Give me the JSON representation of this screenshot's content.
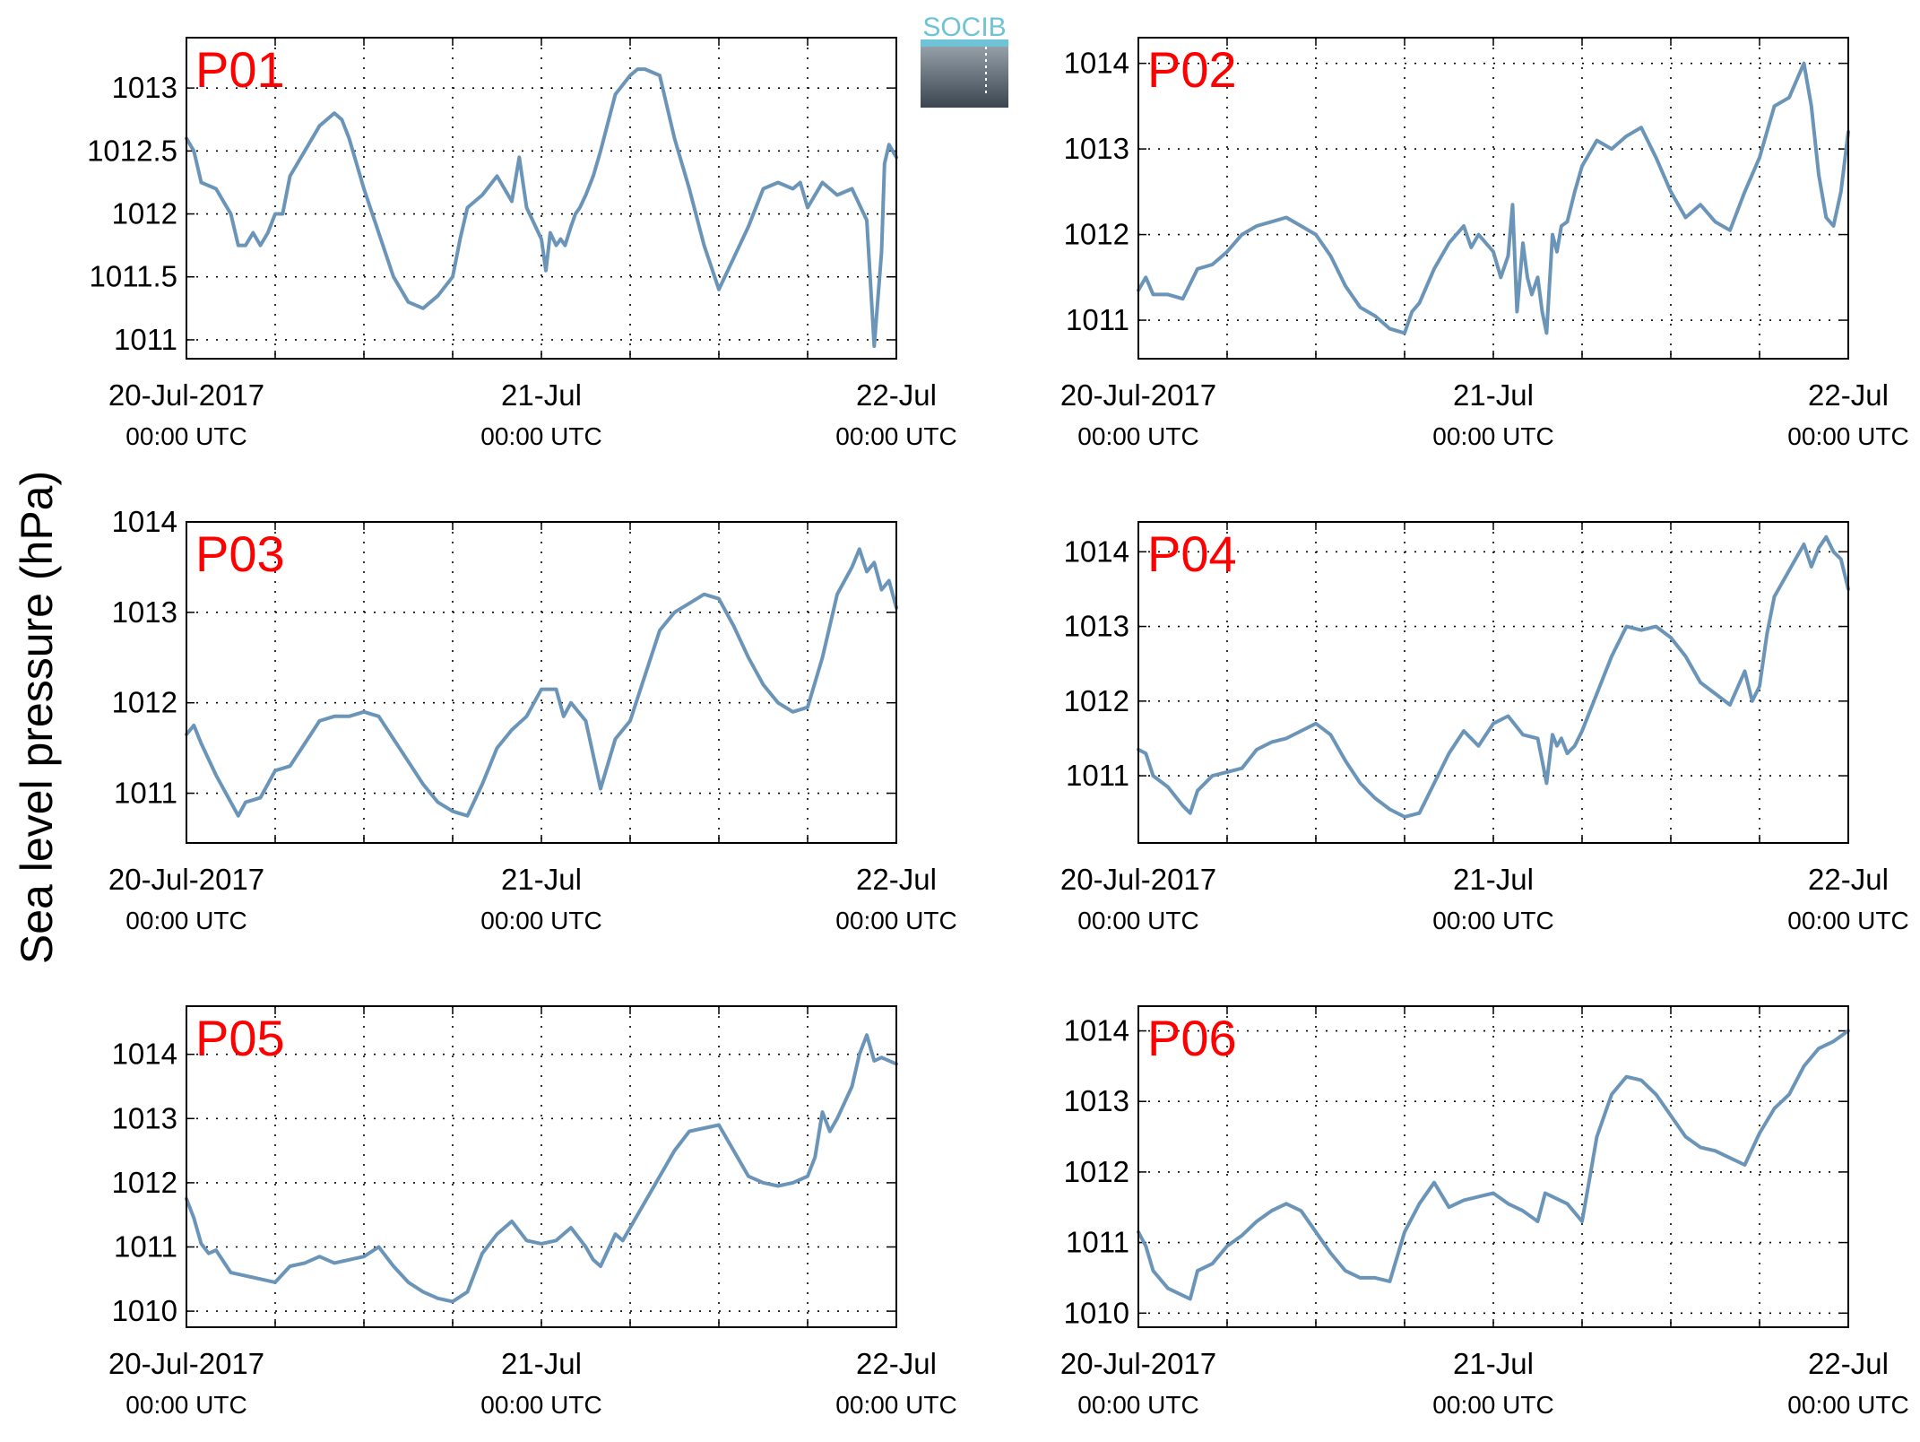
{
  "ylabel": "Sea level pressure (hPa)",
  "logo": {
    "text": "SOCIB"
  },
  "chart_data": [
    {
      "type": "line",
      "label": "P01",
      "xlim": [
        0,
        48
      ],
      "ylim": [
        1010.85,
        1013.4
      ],
      "yticks": [
        1011,
        1011.5,
        1012,
        1012.5,
        1013
      ],
      "ytick_labels": [
        "1011",
        "1011.5",
        "1012",
        "1012.5",
        "1013"
      ],
      "xticks": [
        0,
        24,
        48
      ],
      "xtick_labels": [
        [
          "20-Jul-2017",
          "00:00 UTC"
        ],
        [
          "21-Jul",
          "00:00 UTC"
        ],
        [
          "22-Jul",
          "00:00 UTC"
        ]
      ],
      "series": [
        {
          "color": "#6b95b8",
          "x": [
            0,
            0.5,
            1,
            2,
            3,
            3.5,
            4,
            4.5,
            5,
            5.5,
            6,
            6.5,
            7,
            8,
            9,
            10,
            10.5,
            11,
            12,
            13,
            14,
            15,
            16,
            17,
            18,
            18.5,
            19,
            20,
            21,
            22,
            22.5,
            23,
            24,
            24.3,
            24.6,
            25,
            25.3,
            25.6,
            26,
            26.3,
            26.6,
            27,
            27.5,
            28,
            29,
            30,
            30.5,
            31,
            32,
            33,
            34,
            35,
            36,
            37,
            38,
            39,
            40,
            41,
            41.5,
            42,
            43,
            44,
            45,
            46,
            46.5,
            47,
            47.2,
            47.5,
            48
          ],
          "y": [
            1012.6,
            1012.5,
            1012.25,
            1012.2,
            1012,
            1011.75,
            1011.75,
            1011.85,
            1011.75,
            1011.85,
            1012,
            1012,
            1012.3,
            1012.5,
            1012.7,
            1012.8,
            1012.75,
            1012.6,
            1012.2,
            1011.85,
            1011.5,
            1011.3,
            1011.25,
            1011.35,
            1011.5,
            1011.8,
            1012.05,
            1012.15,
            1012.3,
            1012.1,
            1012.45,
            1012.05,
            1011.8,
            1011.55,
            1011.85,
            1011.75,
            1011.8,
            1011.75,
            1011.9,
            1012,
            1012.05,
            1012.15,
            1012.3,
            1012.5,
            1012.95,
            1013.1,
            1013.15,
            1013.15,
            1013.1,
            1012.6,
            1012.2,
            1011.75,
            1011.4,
            1011.65,
            1011.9,
            1012.2,
            1012.25,
            1012.2,
            1012.25,
            1012.05,
            1012.25,
            1012.15,
            1012.2,
            1011.95,
            1010.95,
            1011.7,
            1012.4,
            1012.55,
            1012.45
          ]
        }
      ]
    },
    {
      "type": "line",
      "label": "P02",
      "xlim": [
        0,
        48
      ],
      "ylim": [
        1010.55,
        1014.3
      ],
      "yticks": [
        1011,
        1012,
        1013,
        1014
      ],
      "ytick_labels": [
        "1011",
        "1012",
        "1013",
        "1014"
      ],
      "xticks": [
        0,
        24,
        48
      ],
      "xtick_labels": [
        [
          "20-Jul-2017",
          "00:00 UTC"
        ],
        [
          "21-Jul",
          "00:00 UTC"
        ],
        [
          "22-Jul",
          "00:00 UTC"
        ]
      ],
      "series": [
        {
          "color": "#6b95b8",
          "x": [
            0,
            0.5,
            1,
            2,
            3,
            4,
            5,
            6,
            7,
            8,
            9,
            10,
            11,
            12,
            13,
            14,
            15,
            16,
            17,
            18,
            18.5,
            19,
            20,
            21,
            22,
            22.5,
            23,
            24,
            24.5,
            25,
            25.3,
            25.6,
            26,
            26.3,
            26.6,
            27,
            27.3,
            27.6,
            28,
            28.3,
            28.6,
            29,
            29.5,
            30,
            31,
            32,
            33,
            34,
            35,
            36,
            37,
            38,
            39,
            40,
            41,
            42,
            43,
            44,
            45,
            45.5,
            46,
            46.5,
            47,
            47.5,
            48
          ],
          "y": [
            1011.35,
            1011.5,
            1011.3,
            1011.3,
            1011.25,
            1011.6,
            1011.65,
            1011.8,
            1012,
            1012.1,
            1012.15,
            1012.2,
            1012.1,
            1012,
            1011.75,
            1011.4,
            1011.15,
            1011.05,
            1010.9,
            1010.85,
            1011.1,
            1011.2,
            1011.6,
            1011.9,
            1012.1,
            1011.85,
            1012,
            1011.8,
            1011.5,
            1011.75,
            1012.35,
            1011.1,
            1011.9,
            1011.5,
            1011.3,
            1011.5,
            1011.1,
            1010.85,
            1012,
            1011.8,
            1012.1,
            1012.15,
            1012.5,
            1012.8,
            1013.1,
            1013.0,
            1013.15,
            1013.25,
            1012.9,
            1012.5,
            1012.2,
            1012.35,
            1012.15,
            1012.05,
            1012.5,
            1012.9,
            1013.5,
            1013.6,
            1014.0,
            1013.5,
            1012.7,
            1012.2,
            1012.1,
            1012.5,
            1013.2
          ]
        }
      ]
    },
    {
      "type": "line",
      "label": "P03",
      "xlim": [
        0,
        48
      ],
      "ylim": [
        1010.45,
        1014.0
      ],
      "yticks": [
        1011,
        1012,
        1013,
        1014
      ],
      "ytick_labels": [
        "1011",
        "1012",
        "1013",
        "1014"
      ],
      "xticks": [
        0,
        24,
        48
      ],
      "xtick_labels": [
        [
          "20-Jul-2017",
          "00:00 UTC"
        ],
        [
          "21-Jul",
          "00:00 UTC"
        ],
        [
          "22-Jul",
          "00:00 UTC"
        ]
      ],
      "series": [
        {
          "color": "#6b95b8",
          "x": [
            0,
            0.5,
            1,
            2,
            3,
            3.5,
            4,
            5,
            6,
            7,
            8,
            9,
            10,
            11,
            12,
            13,
            14,
            15,
            16,
            17,
            18,
            19,
            20,
            21,
            22,
            23,
            24,
            25,
            25.5,
            26,
            27,
            28,
            29,
            30,
            31,
            32,
            33,
            34,
            35,
            36,
            37,
            38,
            39,
            40,
            41,
            42,
            43,
            44,
            45,
            45.5,
            46,
            46.5,
            47,
            47.5,
            48
          ],
          "y": [
            1011.65,
            1011.75,
            1011.55,
            1011.2,
            1010.9,
            1010.75,
            1010.9,
            1010.95,
            1011.25,
            1011.3,
            1011.55,
            1011.8,
            1011.85,
            1011.85,
            1011.9,
            1011.85,
            1011.6,
            1011.35,
            1011.1,
            1010.9,
            1010.8,
            1010.75,
            1011.1,
            1011.5,
            1011.7,
            1011.85,
            1012.15,
            1012.15,
            1011.85,
            1012.0,
            1011.8,
            1011.05,
            1011.6,
            1011.8,
            1012.3,
            1012.8,
            1013.0,
            1013.1,
            1013.2,
            1013.15,
            1012.85,
            1012.5,
            1012.2,
            1012.0,
            1011.9,
            1011.95,
            1012.5,
            1013.2,
            1013.5,
            1013.7,
            1013.45,
            1013.55,
            1013.25,
            1013.35,
            1013.05
          ]
        }
      ]
    },
    {
      "type": "line",
      "label": "P04",
      "xlim": [
        0,
        48
      ],
      "ylim": [
        1010.1,
        1014.4
      ],
      "yticks": [
        1011,
        1012,
        1013,
        1014
      ],
      "ytick_labels": [
        "1011",
        "1012",
        "1013",
        "1014"
      ],
      "xticks": [
        0,
        24,
        48
      ],
      "xtick_labels": [
        [
          "20-Jul-2017",
          "00:00 UTC"
        ],
        [
          "21-Jul",
          "00:00 UTC"
        ],
        [
          "22-Jul",
          "00:00 UTC"
        ]
      ],
      "series": [
        {
          "color": "#6b95b8",
          "x": [
            0,
            0.5,
            1,
            2,
            3,
            3.5,
            4,
            5,
            6,
            7,
            8,
            9,
            10,
            11,
            12,
            13,
            14,
            15,
            16,
            17,
            18,
            19,
            20,
            21,
            22,
            23,
            24,
            25,
            26,
            27,
            27.3,
            27.6,
            28,
            28.3,
            28.6,
            29,
            29.5,
            30,
            31,
            32,
            33,
            34,
            35,
            36,
            37,
            38,
            39,
            40,
            41,
            41.5,
            42,
            42.5,
            43,
            44,
            45,
            45.5,
            46,
            46.5,
            47,
            47.5,
            48
          ],
          "y": [
            1011.35,
            1011.3,
            1011.0,
            1010.85,
            1010.6,
            1010.5,
            1010.8,
            1011.0,
            1011.05,
            1011.1,
            1011.35,
            1011.45,
            1011.5,
            1011.6,
            1011.7,
            1011.55,
            1011.2,
            1010.9,
            1010.7,
            1010.55,
            1010.45,
            1010.5,
            1010.9,
            1011.3,
            1011.6,
            1011.4,
            1011.7,
            1011.8,
            1011.55,
            1011.5,
            1011.2,
            1010.9,
            1011.55,
            1011.4,
            1011.5,
            1011.3,
            1011.4,
            1011.6,
            1012.1,
            1012.6,
            1013.0,
            1012.95,
            1013.0,
            1012.85,
            1012.6,
            1012.25,
            1012.1,
            1011.95,
            1012.4,
            1012.0,
            1012.2,
            1012.9,
            1013.4,
            1013.75,
            1014.1,
            1013.8,
            1014.05,
            1014.2,
            1014.0,
            1013.9,
            1013.5
          ]
        }
      ]
    },
    {
      "type": "line",
      "label": "P05",
      "xlim": [
        0,
        48
      ],
      "ylim": [
        1009.75,
        1014.75
      ],
      "yticks": [
        1010,
        1011,
        1012,
        1013,
        1014
      ],
      "ytick_labels": [
        "1010",
        "1011",
        "1012",
        "1013",
        "1014"
      ],
      "xticks": [
        0,
        24,
        48
      ],
      "xtick_labels": [
        [
          "20-Jul-2017",
          "00:00 UTC"
        ],
        [
          "21-Jul",
          "00:00 UTC"
        ],
        [
          "22-Jul",
          "00:00 UTC"
        ]
      ],
      "series": [
        {
          "color": "#6b95b8",
          "x": [
            0,
            0.5,
            1,
            1.5,
            2,
            3,
            4,
            5,
            6,
            7,
            8,
            9,
            10,
            11,
            12,
            13,
            14,
            15,
            16,
            17,
            18,
            19,
            20,
            21,
            22,
            23,
            24,
            25,
            26,
            27,
            27.5,
            28,
            29,
            29.5,
            30,
            31,
            32,
            33,
            34,
            35,
            36,
            37,
            38,
            39,
            40,
            41,
            42,
            42.5,
            43,
            43.5,
            44,
            45,
            45.5,
            46,
            46.5,
            47,
            48
          ],
          "y": [
            1011.75,
            1011.45,
            1011.05,
            1010.9,
            1010.95,
            1010.6,
            1010.55,
            1010.5,
            1010.45,
            1010.7,
            1010.75,
            1010.85,
            1010.75,
            1010.8,
            1010.85,
            1011.0,
            1010.7,
            1010.45,
            1010.3,
            1010.2,
            1010.15,
            1010.3,
            1010.9,
            1011.2,
            1011.4,
            1011.1,
            1011.05,
            1011.1,
            1011.3,
            1011.0,
            1010.8,
            1010.7,
            1011.2,
            1011.1,
            1011.3,
            1011.7,
            1012.1,
            1012.5,
            1012.8,
            1012.85,
            1012.9,
            1012.5,
            1012.1,
            1012.0,
            1011.95,
            1012.0,
            1012.1,
            1012.4,
            1013.1,
            1012.8,
            1013.0,
            1013.5,
            1014.0,
            1014.3,
            1013.9,
            1013.95,
            1013.85
          ]
        }
      ]
    },
    {
      "type": "line",
      "label": "P06",
      "xlim": [
        0,
        48
      ],
      "ylim": [
        1009.8,
        1014.35
      ],
      "yticks": [
        1010,
        1011,
        1012,
        1013,
        1014
      ],
      "ytick_labels": [
        "1010",
        "1011",
        "1012",
        "1013",
        "1014"
      ],
      "xticks": [
        0,
        24,
        48
      ],
      "xtick_labels": [
        [
          "20-Jul-2017",
          "00:00 UTC"
        ],
        [
          "21-Jul",
          "00:00 UTC"
        ],
        [
          "22-Jul",
          "00:00 UTC"
        ]
      ],
      "series": [
        {
          "color": "#6b95b8",
          "x": [
            0,
            0.5,
            1,
            2,
            3,
            3.5,
            4,
            5,
            6,
            7,
            8,
            9,
            10,
            11,
            12,
            13,
            14,
            15,
            16,
            17,
            18,
            19,
            20,
            21,
            22,
            23,
            24,
            25,
            26,
            27,
            27.5,
            28,
            29,
            30,
            30.5,
            31,
            32,
            33,
            34,
            35,
            36,
            37,
            38,
            39,
            40,
            41,
            42,
            43,
            44,
            45,
            46,
            47,
            48
          ],
          "y": [
            1011.15,
            1010.95,
            1010.6,
            1010.35,
            1010.25,
            1010.2,
            1010.6,
            1010.7,
            1010.95,
            1011.1,
            1011.3,
            1011.45,
            1011.55,
            1011.45,
            1011.15,
            1010.85,
            1010.6,
            1010.5,
            1010.5,
            1010.45,
            1011.15,
            1011.55,
            1011.85,
            1011.5,
            1011.6,
            1011.65,
            1011.7,
            1011.55,
            1011.45,
            1011.3,
            1011.7,
            1011.65,
            1011.55,
            1011.3,
            1011.9,
            1012.5,
            1013.1,
            1013.35,
            1013.3,
            1013.1,
            1012.8,
            1012.5,
            1012.35,
            1012.3,
            1012.2,
            1012.1,
            1012.55,
            1012.9,
            1013.1,
            1013.5,
            1013.75,
            1013.85,
            1014.0
          ]
        }
      ]
    }
  ]
}
